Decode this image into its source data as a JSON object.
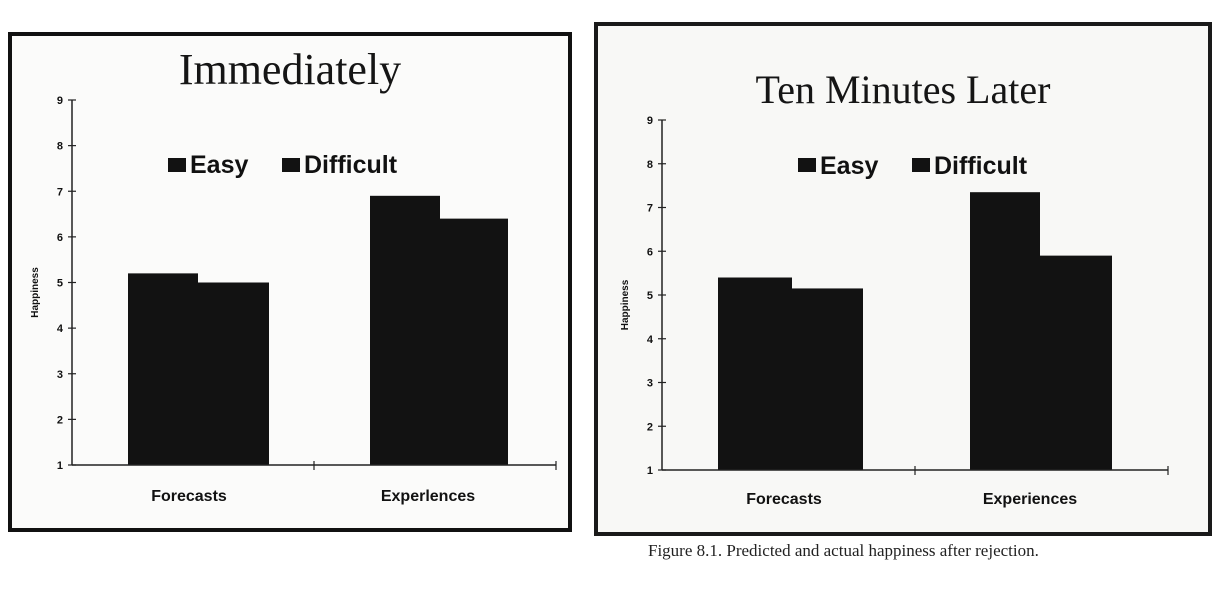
{
  "colors": {
    "bar": "#121212",
    "axis": "#222222",
    "panel_border": "#111111"
  },
  "chart_data": [
    {
      "type": "bar",
      "title": "Immediately",
      "categories": [
        "Forecasts",
        "Experlences"
      ],
      "series": [
        {
          "name": "Easy",
          "values": [
            5.2,
            6.9
          ]
        },
        {
          "name": "Difficult",
          "values": [
            5.0,
            6.4
          ]
        }
      ],
      "xlabel": "",
      "ylabel": "Happiness",
      "ylim": [
        1,
        9
      ],
      "yticks": [
        "1",
        "2",
        "3",
        "4",
        "5",
        "6",
        "7",
        "8",
        "9"
      ],
      "legend": "top-center",
      "grid": false
    },
    {
      "type": "bar",
      "title": "Ten Minutes Later",
      "categories": [
        "Forecasts",
        "Experiences"
      ],
      "series": [
        {
          "name": "Easy",
          "values": [
            5.4,
            7.35
          ]
        },
        {
          "name": "Difficult",
          "values": [
            5.15,
            5.9
          ]
        }
      ],
      "xlabel": "",
      "ylabel": "Happiness",
      "ylim": [
        1,
        9
      ],
      "yticks": [
        "1",
        "2",
        "3",
        "4",
        "5",
        "6",
        "7",
        "8",
        "9"
      ],
      "legend": "top-center",
      "grid": false
    }
  ],
  "caption": "Figure 8.1. Predicted and actual happiness after rejection."
}
